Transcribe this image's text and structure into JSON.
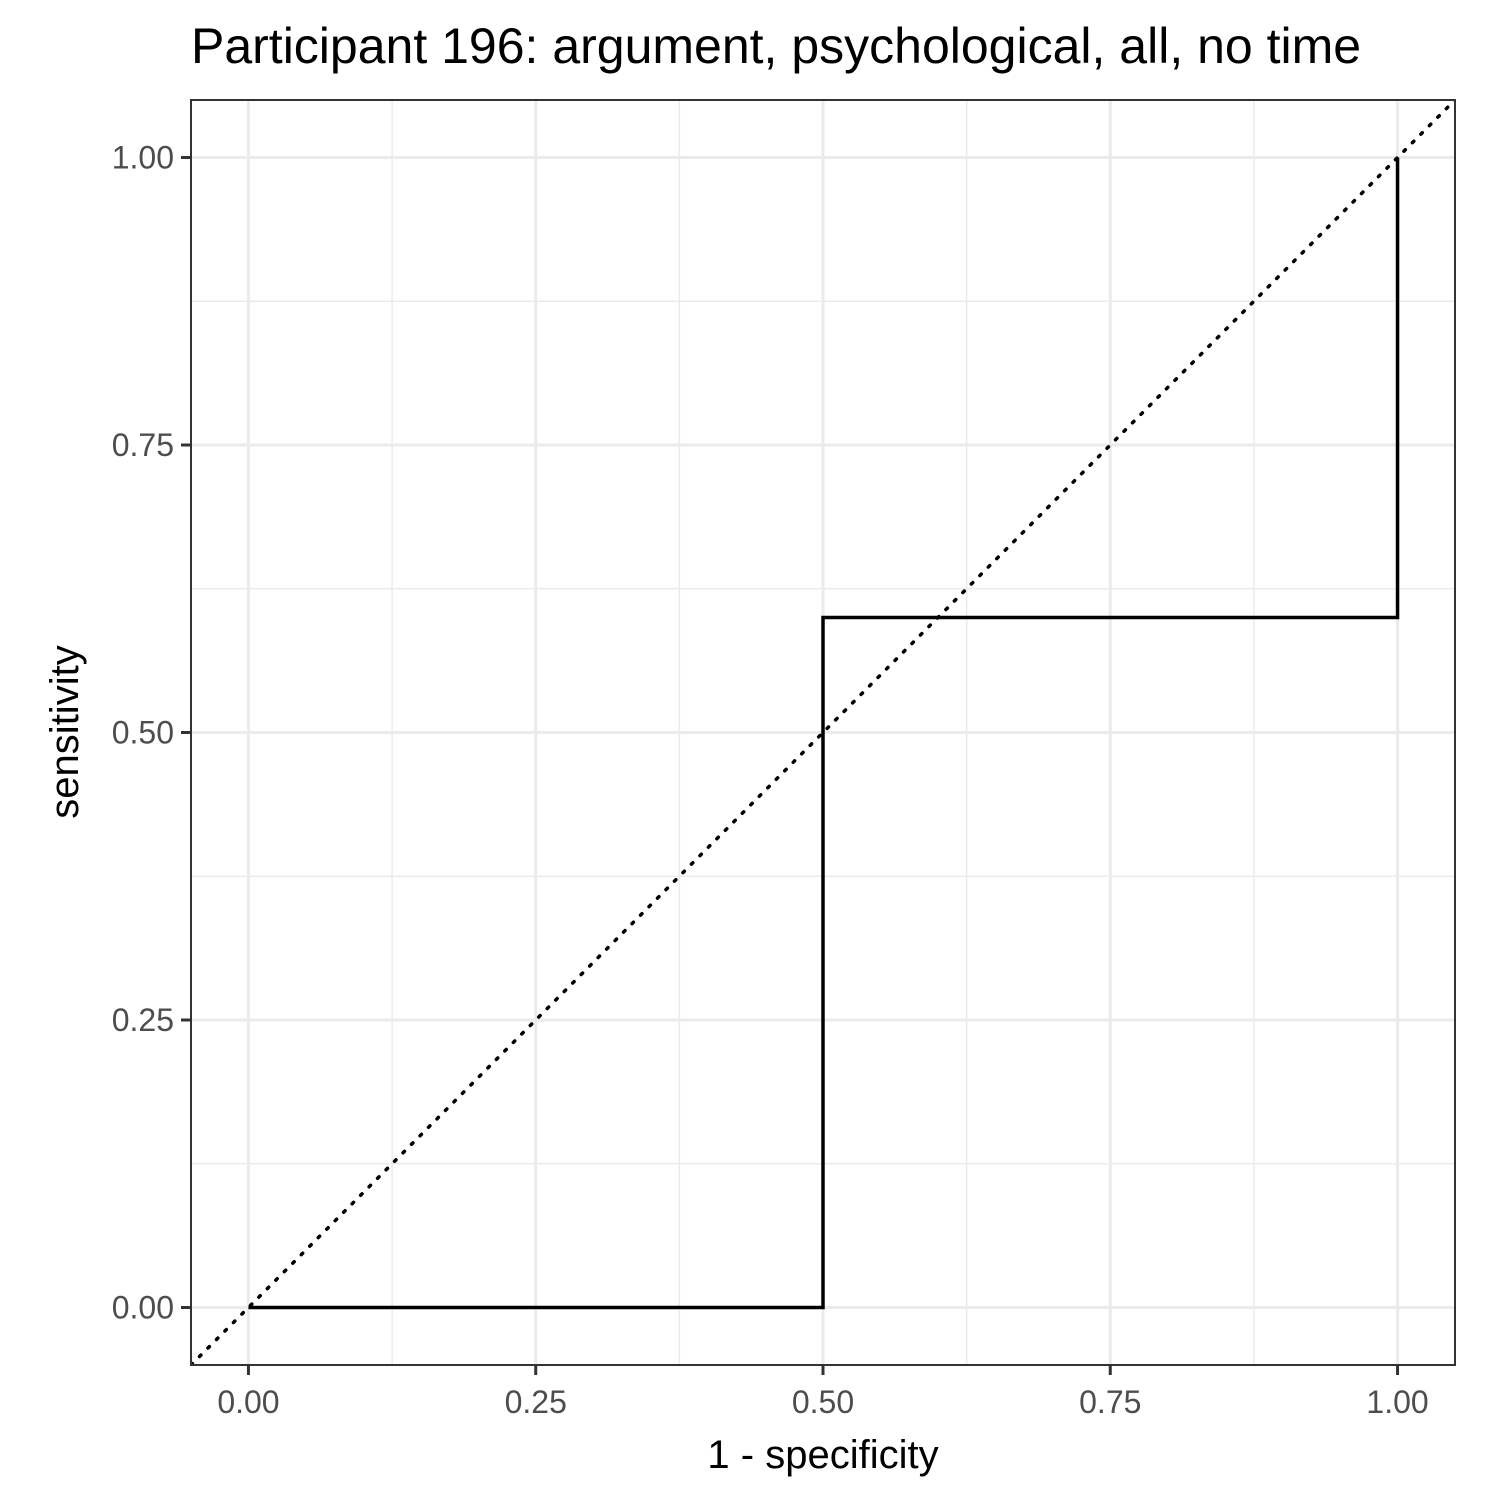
{
  "chart_data": {
    "type": "line",
    "title": "Participant 196: argument, psychological, all, no time",
    "xlabel": "1 - specificity",
    "ylabel": "sensitivity",
    "xlim": [
      -0.05,
      1.05
    ],
    "ylim": [
      -0.05,
      1.05
    ],
    "x_ticks": [
      0,
      0.25,
      0.5,
      0.75,
      1
    ],
    "y_ticks": [
      0,
      0.25,
      0.5,
      0.75,
      1
    ],
    "x_tick_labels": [
      "0.00",
      "0.25",
      "0.50",
      "0.75",
      "1.00"
    ],
    "y_tick_labels": [
      "0.00",
      "0.25",
      "0.50",
      "0.75",
      "1.00"
    ],
    "grid": true,
    "series": [
      {
        "name": "ROC curve",
        "style": "step",
        "x": [
          0,
          0.5,
          0.5,
          1,
          1
        ],
        "y": [
          0,
          0,
          0.6,
          0.6,
          1
        ]
      },
      {
        "name": "reference diagonal",
        "style": "dotted",
        "x": [
          -0.05,
          1.05
        ],
        "y": [
          -0.05,
          1.05
        ]
      }
    ]
  },
  "colors": {
    "line": "#000000",
    "grid": "#ebebeb",
    "border": "#333333",
    "tick_text": "#4d4d4d"
  }
}
